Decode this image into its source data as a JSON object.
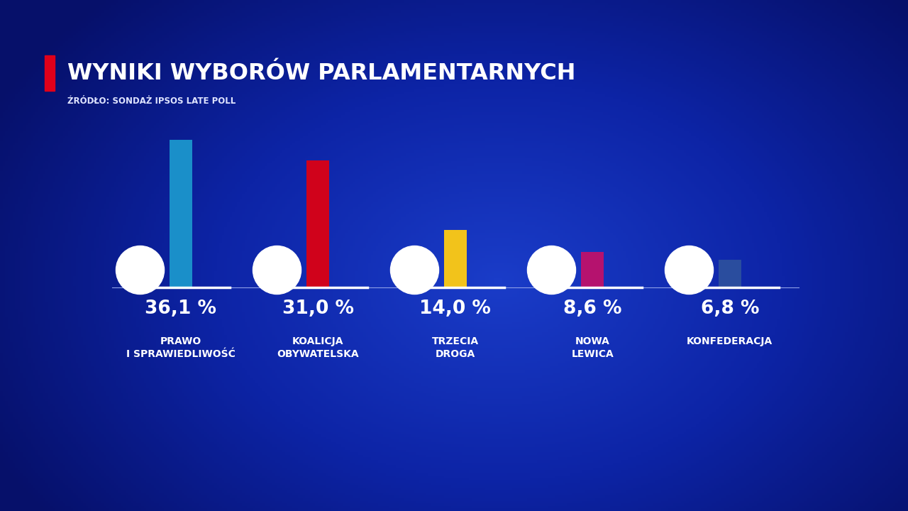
{
  "chart_data": {
    "type": "bar",
    "title": "WYNIKI WYBORÓW PARLAMENTARNYCH",
    "subtitle": "ŹRÓDŁO: SONDAŻ IPSOS LATE POLL",
    "categories": [
      "PRAWO I SPRAWIEDLIWOŚĆ",
      "KOALICJA OBYWATELSKA",
      "TRZECIA DROGA",
      "NOWA LEWICA",
      "KONFEDERACJA"
    ],
    "values": [
      36.1,
      31.0,
      14.0,
      8.6,
      6.8
    ],
    "value_labels": [
      "36,1 %",
      "31,0 %",
      "14,0 %",
      "8,6 %",
      "6,8 %"
    ],
    "colors": [
      "#1a8fc9",
      "#d0021b",
      "#f2c31b",
      "#b5126e",
      "#2a4d9e"
    ],
    "ylim": [
      0,
      40
    ],
    "yticks": [],
    "grid": false,
    "data_labels": true,
    "tick_labels": "x"
  }
}
